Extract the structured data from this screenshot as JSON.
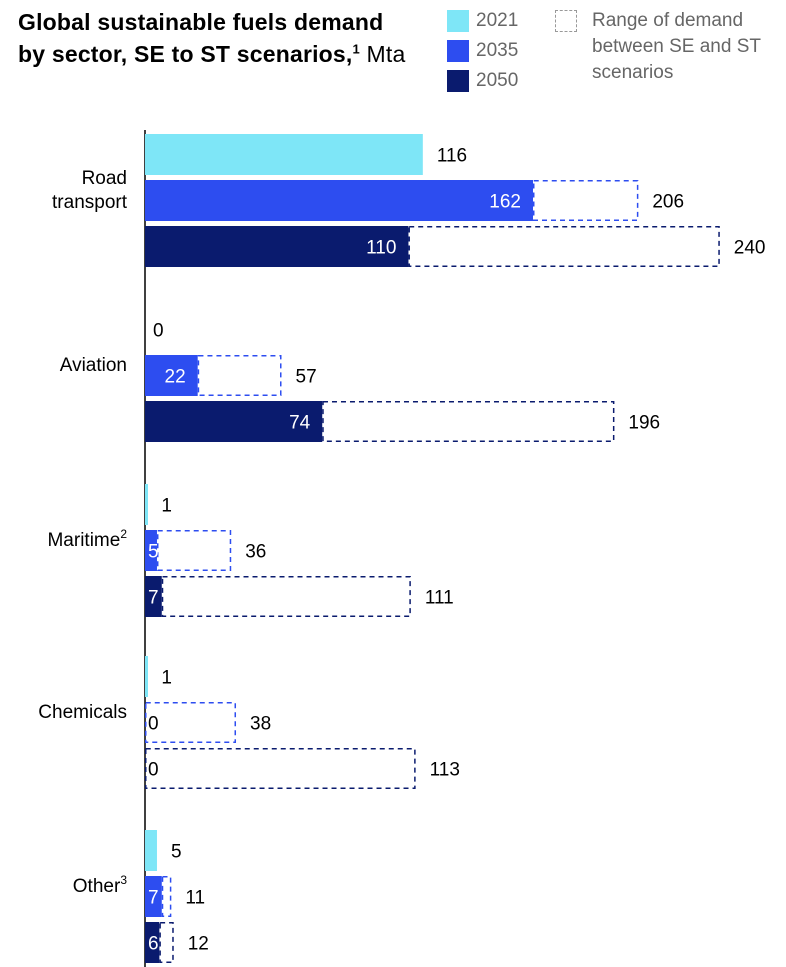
{
  "title": {
    "text": "Global sustainable fuels demand by sector, SE to ST scenarios,",
    "footnote": "1",
    "unit": "Mta"
  },
  "legend": {
    "items": [
      {
        "label": "2021",
        "color": "#7ee6f7"
      },
      {
        "label": "2035",
        "color": "#2d4df0"
      },
      {
        "label": "2050",
        "color": "#0a1b6e"
      }
    ],
    "range_label": "Range of demand between SE and ST scenarios"
  },
  "chart_data": {
    "type": "bar",
    "orientation": "horizontal",
    "categories": [
      "Road transport",
      "Aviation",
      "Maritime",
      "Chemicals",
      "Other"
    ],
    "category_footnotes": [
      "",
      "",
      "2",
      "",
      "3"
    ],
    "series": [
      {
        "name": "2021",
        "color": "#7ee6f7",
        "values": [
          116,
          0,
          1,
          1,
          5
        ]
      },
      {
        "name": "2035",
        "color": "#2d4df0",
        "values": [
          162,
          22,
          5,
          0,
          7
        ],
        "range_max": [
          206,
          57,
          36,
          38,
          11
        ]
      },
      {
        "name": "2050",
        "color": "#0a1b6e",
        "values": [
          110,
          74,
          7,
          0,
          6
        ],
        "range_max": [
          240,
          196,
          111,
          113,
          12
        ]
      }
    ]
  }
}
